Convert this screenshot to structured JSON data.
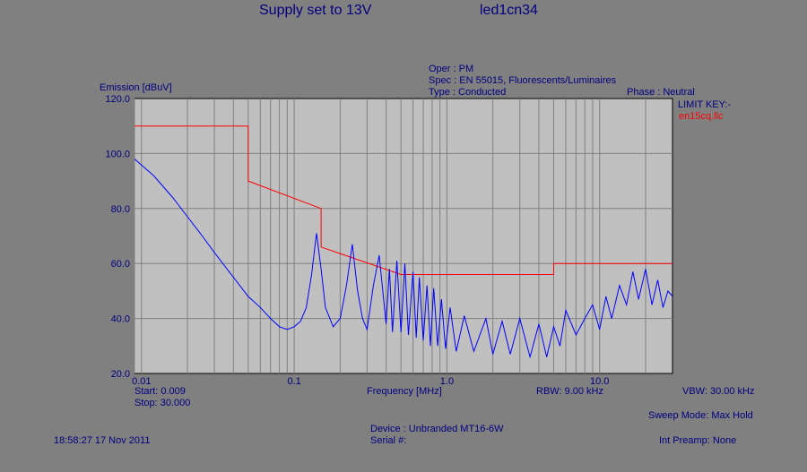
{
  "header": {
    "title_left": "Supply set to 13V",
    "title_right": "led1cn34",
    "oper": "Oper : PM",
    "spec": "Spec : EN 55015, Fluorescents/Luminaires",
    "type": "Type : Conducted",
    "phase": "Phase : Neutral"
  },
  "legend": {
    "key_label": "LIMIT KEY:-",
    "limit_file": "en15cq.llc"
  },
  "footer": {
    "start": "Start: 0.009",
    "stop": "Stop: 30.000",
    "rbw": "RBW: 9.00 kHz",
    "vbw": "VBW: 30.00 kHz",
    "sweep_mode": "Sweep Mode: Max Hold",
    "device": "Device : Unbranded MT16-6W",
    "serial": "Serial #:",
    "timestamp": "18:58:27 17 Nov 2011",
    "preamp": "Int Preamp: None"
  },
  "colors": {
    "background": "#808080",
    "plot_area": "#c0c0c0",
    "grid": "#808080",
    "trace": "#0000ff",
    "limit": "#ff0000",
    "text": "#000080"
  },
  "chart_data": {
    "type": "line",
    "title": "",
    "xlabel": "Frequency [MHz]",
    "ylabel": "Emission [dBuV]",
    "xscale": "log",
    "xlim": [
      0.009,
      30.0
    ],
    "ylim": [
      20.0,
      120.0
    ],
    "xticks": [
      0.01,
      0.1,
      1.0,
      10.0
    ],
    "xtick_labels": [
      "0.01",
      "0.1",
      "1.0",
      "10.0"
    ],
    "yticks": [
      20.0,
      40.0,
      60.0,
      80.0,
      100.0,
      120.0
    ],
    "ytick_labels": [
      "20.0",
      "40.0",
      "60.0",
      "80.0",
      "100.0",
      "120.0"
    ],
    "grid": true,
    "series": [
      {
        "name": "en15cq.llc",
        "role": "limit",
        "x": [
          0.009,
          0.05,
          0.05,
          0.15,
          0.15,
          0.5,
          0.5,
          5.0,
          5.0,
          30.0
        ],
        "y": [
          110,
          110,
          90,
          80,
          66,
          56,
          56,
          56,
          60,
          60
        ]
      },
      {
        "name": "",
        "role": "measurement",
        "x": [
          0.009,
          0.012,
          0.016,
          0.02,
          0.025,
          0.03,
          0.04,
          0.05,
          0.06,
          0.07,
          0.08,
          0.09,
          0.1,
          0.11,
          0.12,
          0.13,
          0.14,
          0.15,
          0.16,
          0.18,
          0.2,
          0.22,
          0.24,
          0.26,
          0.28,
          0.3,
          0.33,
          0.36,
          0.4,
          0.42,
          0.44,
          0.47,
          0.5,
          0.53,
          0.56,
          0.6,
          0.63,
          0.66,
          0.7,
          0.74,
          0.78,
          0.82,
          0.87,
          0.92,
          0.98,
          1.05,
          1.15,
          1.3,
          1.5,
          1.8,
          2.0,
          2.3,
          2.6,
          3.0,
          3.5,
          4.0,
          4.5,
          5.0,
          5.5,
          6.0,
          7.0,
          8.0,
          9.0,
          10.0,
          11.0,
          12.0,
          13.5,
          15.0,
          16.5,
          18.0,
          20.0,
          22.0,
          24.0,
          26.0,
          28.0,
          30.0
        ],
        "y": [
          98,
          92,
          84,
          77,
          70,
          64,
          55,
          48,
          44,
          40,
          37,
          36,
          37,
          39,
          44,
          56,
          71,
          58,
          44,
          37,
          40,
          52,
          67,
          50,
          40,
          36,
          52,
          63,
          38,
          58,
          35,
          61,
          35,
          60,
          34,
          57,
          33,
          55,
          32,
          52,
          30,
          51,
          30,
          47,
          29,
          44,
          28,
          41,
          28,
          40,
          27,
          39,
          27,
          40,
          26,
          38,
          26,
          37,
          30,
          43,
          34,
          40,
          45,
          36,
          48,
          40,
          52,
          45,
          57,
          47,
          58,
          45,
          54,
          44,
          50,
          48
        ]
      }
    ]
  }
}
